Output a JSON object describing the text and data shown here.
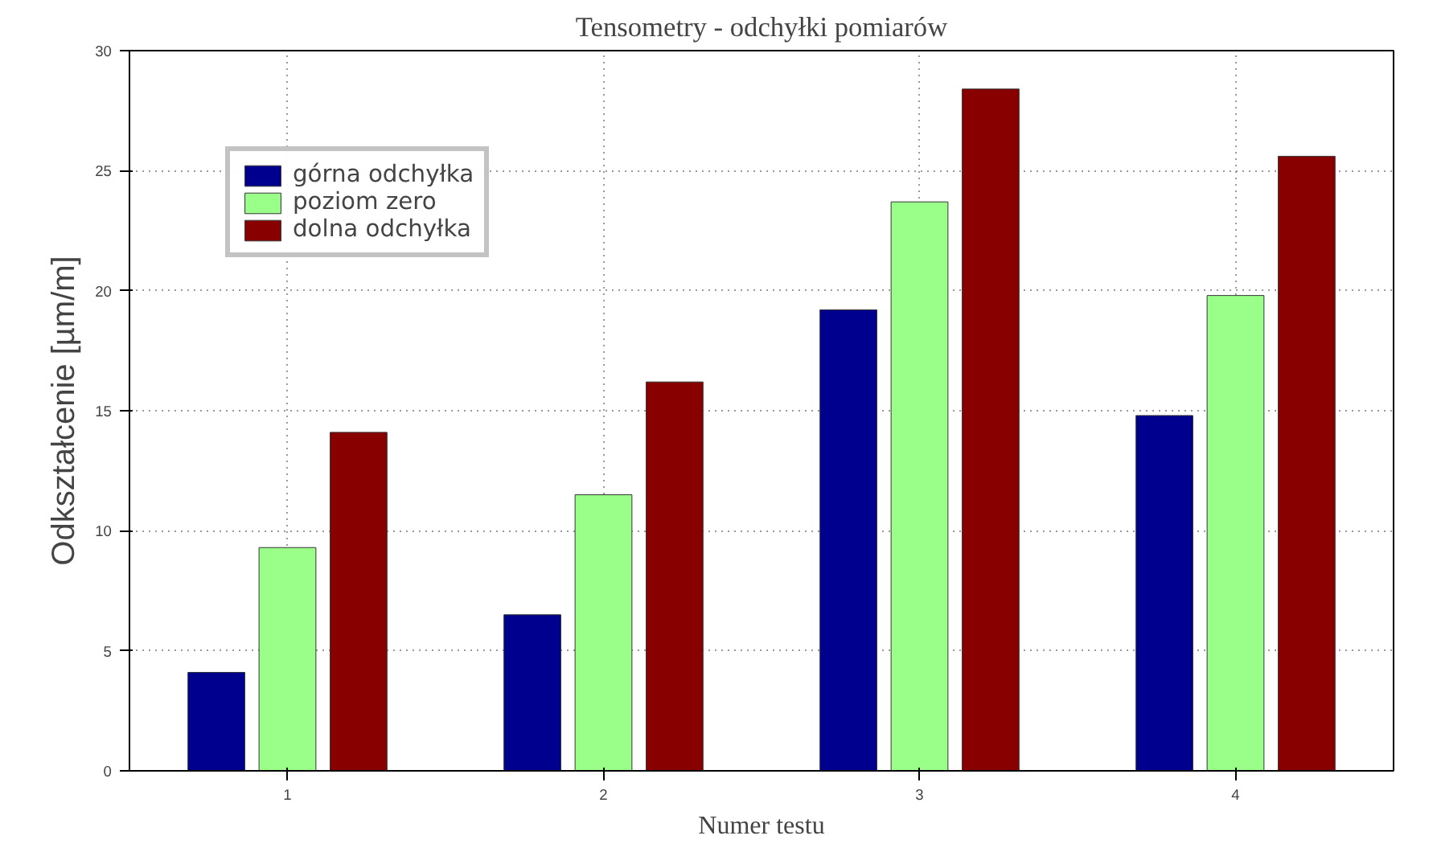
{
  "chart_data": {
    "type": "bar",
    "title": "Tensometry - odchyłki pomiarów",
    "xlabel": "Numer testu",
    "ylabel": "Odkształcenie [µm/m]",
    "categories": [
      "1",
      "2",
      "3",
      "4"
    ],
    "series": [
      {
        "name": "górna odchyłka",
        "color": "#00008f",
        "values": [
          4.1,
          6.5,
          19.2,
          14.8
        ]
      },
      {
        "name": "poziom zero",
        "color": "#99ff88",
        "values": [
          9.3,
          11.5,
          23.7,
          19.8
        ]
      },
      {
        "name": "dolna odchyłka",
        "color": "#880000",
        "values": [
          14.1,
          16.2,
          28.4,
          25.6
        ]
      }
    ],
    "ylim": [
      0,
      30
    ],
    "yticks": [
      0,
      5,
      10,
      15,
      20,
      25,
      30
    ],
    "grid": true,
    "legend": "top left"
  }
}
